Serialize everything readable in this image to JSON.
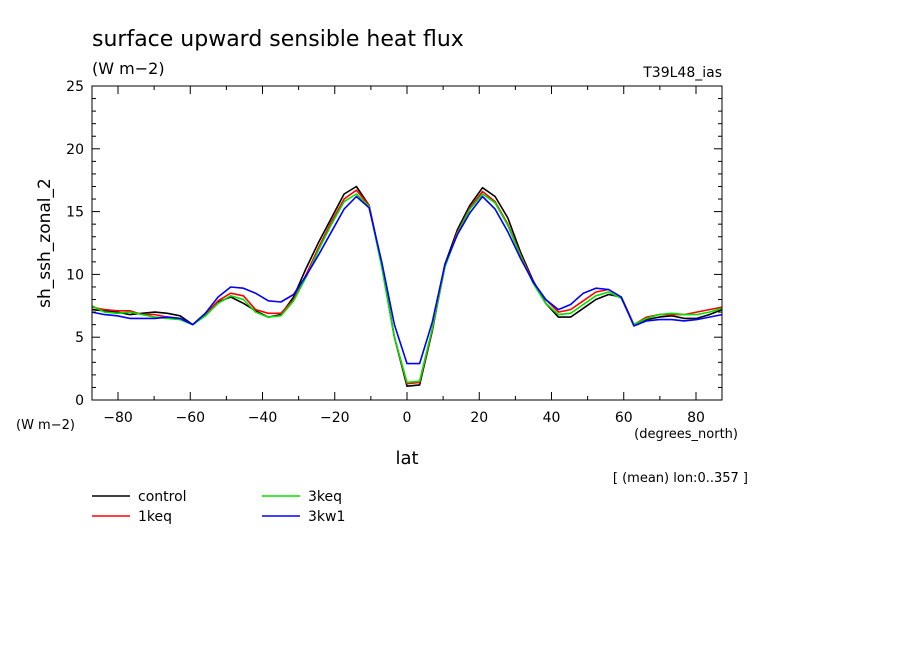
{
  "chart_data": {
    "type": "line",
    "title": "surface upward sensible heat flux",
    "units_label": "(W m−2)",
    "run_label": "T39L48_ias",
    "xlabel": "lat",
    "x_units": "(degrees_north)",
    "ylabel": "sh_ssh_zonal_2",
    "y_units": "(W m−2)",
    "footnote": "[ (mean) lon:0..357 ]",
    "xlim": [
      -87.2,
      87.2
    ],
    "ylim": [
      0,
      25
    ],
    "x_ticks": [
      "-80",
      "-60",
      "-40",
      "-20",
      "0",
      "20",
      "40",
      "60",
      "80"
    ],
    "y_ticks": [
      "0",
      "5",
      "10",
      "15",
      "20",
      "25"
    ],
    "grid": false,
    "legend_position": "bottom-left",
    "x": [
      -87.2,
      -83.7,
      -80.2,
      -76.7,
      -73.3,
      -69.8,
      -66.3,
      -62.8,
      -59.3,
      -55.8,
      -52.3,
      -48.8,
      -45.3,
      -41.9,
      -38.4,
      -34.9,
      -31.4,
      -27.9,
      -24.4,
      -20.9,
      -17.4,
      -14.0,
      -10.5,
      -7.0,
      -3.5,
      0.0,
      3.5,
      7.0,
      10.5,
      14.0,
      17.4,
      20.9,
      24.4,
      27.9,
      31.4,
      34.9,
      38.4,
      41.9,
      45.3,
      48.8,
      52.3,
      55.8,
      59.3,
      62.8,
      66.3,
      69.8,
      73.3,
      76.7,
      80.2,
      83.7,
      87.2
    ],
    "series": [
      {
        "name": "control",
        "color": "#000000",
        "values": [
          7.2,
          7.1,
          7.0,
          6.8,
          6.9,
          7.0,
          6.9,
          6.7,
          6.0,
          6.9,
          7.8,
          8.2,
          7.7,
          7.1,
          6.6,
          6.8,
          8.2,
          10.5,
          12.6,
          14.5,
          16.4,
          17.0,
          15.5,
          10.8,
          5.0,
          1.1,
          1.2,
          5.5,
          10.8,
          13.6,
          15.5,
          16.9,
          16.2,
          14.5,
          11.8,
          9.5,
          7.7,
          6.6,
          6.6,
          7.3,
          8.0,
          8.4,
          8.2,
          6.0,
          6.4,
          6.6,
          6.7,
          6.5,
          6.5,
          6.8,
          7.2
        ]
      },
      {
        "name": "1keq",
        "color": "#ff0000",
        "values": [
          7.4,
          7.2,
          7.1,
          7.1,
          6.8,
          6.8,
          6.6,
          6.5,
          6.0,
          6.8,
          7.9,
          8.5,
          8.3,
          7.2,
          6.9,
          6.9,
          8.0,
          10.0,
          12.2,
          14.2,
          16.0,
          16.7,
          15.5,
          10.7,
          5.0,
          1.3,
          1.4,
          5.6,
          10.6,
          13.4,
          15.3,
          16.6,
          15.8,
          14.0,
          11.6,
          9.4,
          8.0,
          7.0,
          7.2,
          7.9,
          8.6,
          8.8,
          8.2,
          6.0,
          6.6,
          6.8,
          6.8,
          6.8,
          7.0,
          7.2,
          7.4
        ]
      },
      {
        "name": "3keq",
        "color": "#00e000",
        "values": [
          7.5,
          7.0,
          6.9,
          7.0,
          6.8,
          6.6,
          6.5,
          6.4,
          6.0,
          6.7,
          7.7,
          8.3,
          8.0,
          7.0,
          6.6,
          6.7,
          7.9,
          9.8,
          12.0,
          14.0,
          15.8,
          16.4,
          15.4,
          10.6,
          5.0,
          1.4,
          1.5,
          5.7,
          10.6,
          13.3,
          15.2,
          16.4,
          15.7,
          13.9,
          11.5,
          9.3,
          7.7,
          6.8,
          6.9,
          7.6,
          8.3,
          8.6,
          8.1,
          6.0,
          6.5,
          6.8,
          6.9,
          6.8,
          6.8,
          7.0,
          7.3
        ]
      },
      {
        "name": "3kw1",
        "color": "#0000ff",
        "values": [
          7.0,
          6.8,
          6.7,
          6.5,
          6.5,
          6.5,
          6.6,
          6.5,
          6.0,
          6.9,
          8.2,
          9.0,
          8.9,
          8.5,
          7.9,
          7.8,
          8.4,
          9.9,
          11.6,
          13.4,
          15.2,
          16.2,
          15.3,
          11.0,
          6.0,
          2.9,
          2.9,
          6.2,
          10.8,
          13.2,
          14.9,
          16.2,
          15.2,
          13.4,
          11.3,
          9.4,
          8.0,
          7.2,
          7.6,
          8.5,
          8.9,
          8.8,
          8.2,
          5.9,
          6.3,
          6.4,
          6.4,
          6.3,
          6.4,
          6.6,
          6.8
        ]
      }
    ]
  }
}
